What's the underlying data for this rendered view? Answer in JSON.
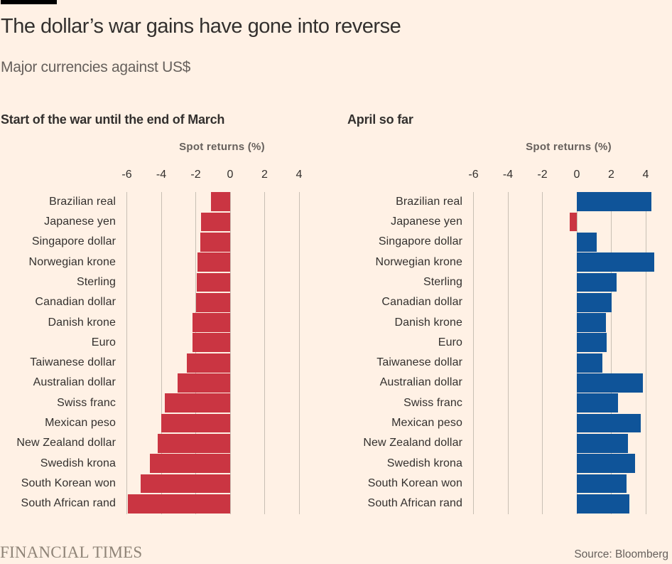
{
  "page": {
    "title": "The dollar’s war gains have gone into reverse",
    "subtitle": "Major currencies against US$",
    "footer": {
      "brand": "FINANCIAL TIMES",
      "source": "Source: Bloomberg"
    },
    "background_color": "#FFF1E5"
  },
  "colors": {
    "negative_bar": "#CA3542",
    "positive_bar": "#0F5499",
    "gridline": "#C8BFB4",
    "heading_text": "#33302E",
    "muted_text": "#66605C",
    "brand_text": "#8F8477"
  },
  "chart_data": [
    {
      "type": "bar",
      "orientation": "horizontal",
      "title": "Start of the war until the end of March",
      "xlabel": "Spot returns (%)",
      "xticks": [
        -6,
        -4,
        -2,
        0,
        2,
        4
      ],
      "xlim": [
        -6.5,
        5.6
      ],
      "grid": true,
      "categories": [
        "Brazilian real",
        "Japanese yen",
        "Singapore dollar",
        "Norwegian krone",
        "Sterling",
        "Canadian dollar",
        "Danish krone",
        "Euro",
        "Taiwanese dollar",
        "Australian dollar",
        "Swiss franc",
        "Mexican peso",
        "New Zealand dollar",
        "Swedish krona",
        "South Korean won",
        "South African rand"
      ],
      "values": [
        -1.1,
        -1.7,
        -1.75,
        -1.9,
        -1.95,
        -2.0,
        -2.2,
        -2.2,
        -2.5,
        -3.05,
        -3.8,
        -4.0,
        -4.2,
        -4.65,
        -5.2,
        -5.95
      ]
    },
    {
      "type": "bar",
      "orientation": "horizontal",
      "title": "April so far",
      "xlabel": "Spot returns (%)",
      "xticks": [
        -6,
        -4,
        -2,
        0,
        2,
        4
      ],
      "xlim": [
        -6.5,
        5.6
      ],
      "grid": true,
      "categories": [
        "Brazilian real",
        "Japanese yen",
        "Singapore dollar",
        "Norwegian krone",
        "Sterling",
        "Canadian dollar",
        "Danish krone",
        "Euro",
        "Taiwanese dollar",
        "Australian dollar",
        "Swiss franc",
        "Mexican peso",
        "New Zealand dollar",
        "Swedish krona",
        "South Korean won",
        "South African rand"
      ],
      "values": [
        4.35,
        -0.4,
        1.15,
        4.5,
        2.3,
        2.0,
        1.7,
        1.75,
        1.5,
        3.85,
        2.4,
        3.7,
        2.95,
        3.4,
        2.9,
        3.05
      ]
    }
  ]
}
